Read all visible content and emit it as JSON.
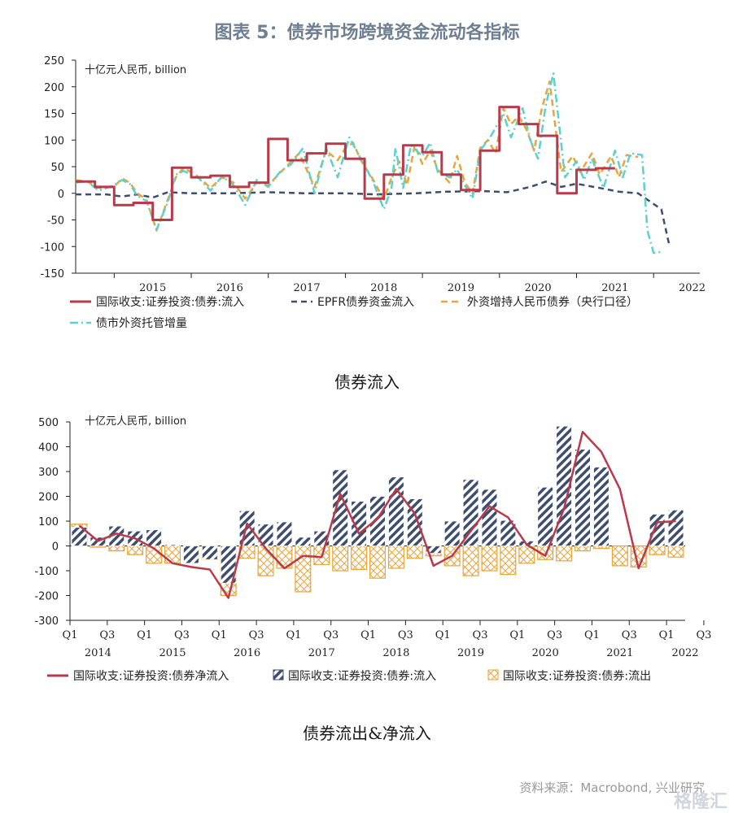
{
  "page": {
    "title": "图表 5：债券市场跨境资金流动各指标",
    "caption1": "债券流入",
    "caption2": "债券流出&净流入",
    "source": "资料来源：Macrobond, 兴业研究",
    "watermark": "格隆汇"
  },
  "chart_data": [
    {
      "type": "line",
      "unit_label": "十亿元人民币, billion",
      "ylim": [
        -150,
        250
      ],
      "yticks": [
        250,
        200,
        150,
        100,
        50,
        0,
        -50,
        -100,
        -150
      ],
      "xlim": [
        2014.5,
        2022.6
      ],
      "x_tick_labels": [
        "2015",
        "2016",
        "2017",
        "2018",
        "2019",
        "2020",
        "2021",
        "2022"
      ],
      "legend": "bottom",
      "colors": {
        "bop": "#b83a4b",
        "epfr": "#3d4e6e",
        "pboc": "#e8a53c",
        "custody": "#5fcfcf"
      },
      "series": [
        {
          "key": "bop",
          "name": "国际收支:证券投资:债券:流入",
          "points": [
            [
              2014.5,
              22
            ],
            [
              2014.75,
              22
            ],
            [
              2014.75,
              12
            ],
            [
              2015.0,
              12
            ],
            [
              2015.0,
              -22
            ],
            [
              2015.25,
              -22
            ],
            [
              2015.25,
              -18
            ],
            [
              2015.5,
              -18
            ],
            [
              2015.5,
              -50
            ],
            [
              2015.75,
              -50
            ],
            [
              2015.75,
              48
            ],
            [
              2016.0,
              48
            ],
            [
              2016.0,
              30
            ],
            [
              2016.25,
              30
            ],
            [
              2016.25,
              33
            ],
            [
              2016.5,
              33
            ],
            [
              2016.5,
              12
            ],
            [
              2016.75,
              12
            ],
            [
              2016.75,
              20
            ],
            [
              2017.0,
              20
            ],
            [
              2017.0,
              102
            ],
            [
              2017.25,
              102
            ],
            [
              2017.25,
              62
            ],
            [
              2017.5,
              62
            ],
            [
              2017.5,
              75
            ],
            [
              2017.75,
              75
            ],
            [
              2017.75,
              93
            ],
            [
              2018.0,
              93
            ],
            [
              2018.0,
              65
            ],
            [
              2018.25,
              65
            ],
            [
              2018.25,
              -10
            ],
            [
              2018.5,
              -10
            ],
            [
              2018.5,
              35
            ],
            [
              2018.75,
              35
            ],
            [
              2018.75,
              90
            ],
            [
              2019.0,
              90
            ],
            [
              2019.0,
              77
            ],
            [
              2019.25,
              77
            ],
            [
              2019.25,
              35
            ],
            [
              2019.5,
              35
            ],
            [
              2019.5,
              6
            ],
            [
              2019.75,
              6
            ],
            [
              2019.75,
              80
            ],
            [
              2020.0,
              80
            ],
            [
              2020.0,
              162
            ],
            [
              2020.25,
              162
            ],
            [
              2020.25,
              130
            ],
            [
              2020.5,
              130
            ],
            [
              2020.5,
              108
            ],
            [
              2020.75,
              108
            ],
            [
              2020.75,
              0
            ],
            [
              2021.0,
              0
            ],
            [
              2021.0,
              44
            ],
            [
              2021.25,
              44
            ],
            [
              2021.25,
              47
            ],
            [
              2021.5,
              47
            ]
          ]
        },
        {
          "key": "epfr",
          "name": "EPFR债券资金流入",
          "points": [
            [
              2014.5,
              -2
            ],
            [
              2014.9,
              -2
            ],
            [
              2015.1,
              -6
            ],
            [
              2015.3,
              -2
            ],
            [
              2015.5,
              -8
            ],
            [
              2015.7,
              2
            ],
            [
              2016.0,
              0
            ],
            [
              2016.5,
              0
            ],
            [
              2017.0,
              2
            ],
            [
              2017.5,
              0
            ],
            [
              2018.0,
              0
            ],
            [
              2018.4,
              -2
            ],
            [
              2018.9,
              0
            ],
            [
              2019.3,
              3
            ],
            [
              2019.8,
              4
            ],
            [
              2020.1,
              2
            ],
            [
              2020.4,
              12
            ],
            [
              2020.6,
              22
            ],
            [
              2020.8,
              12
            ],
            [
              2021.0,
              18
            ],
            [
              2021.3,
              10
            ],
            [
              2021.55,
              3
            ],
            [
              2021.8,
              0
            ],
            [
              2022.0,
              -20
            ],
            [
              2022.1,
              -30
            ],
            [
              2022.2,
              -95
            ]
          ]
        },
        {
          "key": "pboc",
          "name": "外资增持人民币债券（央行口径）",
          "points": [
            [
              2014.5,
              25
            ],
            [
              2014.65,
              22
            ],
            [
              2014.8,
              10
            ],
            [
              2015.0,
              12
            ],
            [
              2015.1,
              28
            ],
            [
              2015.2,
              20
            ],
            [
              2015.3,
              0
            ],
            [
              2015.42,
              -12
            ],
            [
              2015.55,
              -70
            ],
            [
              2015.7,
              -10
            ],
            [
              2015.8,
              30
            ],
            [
              2015.9,
              48
            ],
            [
              2016.1,
              30
            ],
            [
              2016.25,
              10
            ],
            [
              2016.4,
              30
            ],
            [
              2016.55,
              20
            ],
            [
              2016.7,
              -10
            ],
            [
              2016.85,
              20
            ],
            [
              2017.0,
              15
            ],
            [
              2017.15,
              38
            ],
            [
              2017.3,
              60
            ],
            [
              2017.4,
              75
            ],
            [
              2017.6,
              12
            ],
            [
              2017.75,
              80
            ],
            [
              2017.9,
              62
            ],
            [
              2018.0,
              85
            ],
            [
              2018.1,
              95
            ],
            [
              2018.2,
              62
            ],
            [
              2018.35,
              28
            ],
            [
              2018.5,
              -12
            ],
            [
              2018.6,
              30
            ],
            [
              2018.7,
              60
            ],
            [
              2018.8,
              15
            ],
            [
              2018.9,
              90
            ],
            [
              2019.0,
              55
            ],
            [
              2019.1,
              80
            ],
            [
              2019.2,
              45
            ],
            [
              2019.35,
              20
            ],
            [
              2019.45,
              70
            ],
            [
              2019.55,
              20
            ],
            [
              2019.65,
              0
            ],
            [
              2019.75,
              85
            ],
            [
              2019.85,
              100
            ],
            [
              2019.95,
              75
            ],
            [
              2020.05,
              160
            ],
            [
              2020.15,
              130
            ],
            [
              2020.25,
              145
            ],
            [
              2020.35,
              120
            ],
            [
              2020.45,
              80
            ],
            [
              2020.55,
              160
            ],
            [
              2020.65,
              210
            ],
            [
              2020.8,
              40
            ],
            [
              2020.95,
              70
            ],
            [
              2021.05,
              40
            ],
            [
              2021.2,
              75
            ],
            [
              2021.3,
              35
            ],
            [
              2021.45,
              70
            ],
            [
              2021.55,
              30
            ],
            [
              2021.65,
              72
            ],
            [
              2021.8,
              68
            ]
          ]
        },
        {
          "key": "custody",
          "name": "债市外资托管增量",
          "points": [
            [
              2014.5,
              20
            ],
            [
              2014.65,
              22
            ],
            [
              2014.8,
              5
            ],
            [
              2015.0,
              15
            ],
            [
              2015.1,
              25
            ],
            [
              2015.2,
              18
            ],
            [
              2015.3,
              -5
            ],
            [
              2015.42,
              -15
            ],
            [
              2015.55,
              -68
            ],
            [
              2015.7,
              -15
            ],
            [
              2015.8,
              35
            ],
            [
              2015.9,
              42
            ],
            [
              2016.1,
              28
            ],
            [
              2016.25,
              5
            ],
            [
              2016.4,
              32
            ],
            [
              2016.55,
              15
            ],
            [
              2016.7,
              -22
            ],
            [
              2016.85,
              25
            ],
            [
              2017.0,
              12
            ],
            [
              2017.15,
              40
            ],
            [
              2017.3,
              55
            ],
            [
              2017.45,
              85
            ],
            [
              2017.6,
              0
            ],
            [
              2017.75,
              85
            ],
            [
              2017.9,
              30
            ],
            [
              2018.05,
              105
            ],
            [
              2018.2,
              65
            ],
            [
              2018.35,
              25
            ],
            [
              2018.5,
              -30
            ],
            [
              2018.6,
              10
            ],
            [
              2018.65,
              85
            ],
            [
              2018.75,
              10
            ],
            [
              2018.85,
              90
            ],
            [
              2019.0,
              70
            ],
            [
              2019.1,
              95
            ],
            [
              2019.2,
              40
            ],
            [
              2019.35,
              30
            ],
            [
              2019.45,
              45
            ],
            [
              2019.55,
              15
            ],
            [
              2019.65,
              -10
            ],
            [
              2019.75,
              80
            ],
            [
              2019.9,
              110
            ],
            [
              2020.05,
              150
            ],
            [
              2020.15,
              105
            ],
            [
              2020.3,
              160
            ],
            [
              2020.4,
              100
            ],
            [
              2020.5,
              65
            ],
            [
              2020.6,
              165
            ],
            [
              2020.7,
              225
            ],
            [
              2020.85,
              30
            ],
            [
              2021.0,
              60
            ],
            [
              2021.1,
              25
            ],
            [
              2021.2,
              65
            ],
            [
              2021.35,
              10
            ],
            [
              2021.5,
              80
            ],
            [
              2021.6,
              30
            ],
            [
              2021.7,
              75
            ],
            [
              2021.85,
              72
            ],
            [
              2021.92,
              -70
            ],
            [
              2022.0,
              -112
            ],
            [
              2022.1,
              -110
            ]
          ]
        }
      ]
    },
    {
      "type": "bar",
      "unit_label": "十亿元人民币, billion",
      "ylim": [
        -300,
        500
      ],
      "yticks": [
        500,
        400,
        300,
        200,
        100,
        0,
        -100,
        -200,
        -300
      ],
      "quarter_labels": [
        "Q1",
        "Q3",
        "Q1",
        "Q3",
        "Q1",
        "Q3",
        "Q1",
        "Q3",
        "Q1",
        "Q3",
        "Q1",
        "Q3",
        "Q1",
        "Q3",
        "Q1",
        "Q3",
        "Q1",
        "Q3",
        "Q1"
      ],
      "year_labels": [
        "2014",
        "2015",
        "2016",
        "2017",
        "2018",
        "2019",
        "2020",
        "2021",
        "2022"
      ],
      "legend": "bottom",
      "colors": {
        "inflow": "#3d4e6e",
        "outflow": "#e8a53c",
        "net": "#b83a4b"
      },
      "series": [
        {
          "key": "net",
          "name": "国际收支:证券投资:债券净流入",
          "values": [
            82,
            20,
            50,
            30,
            -10,
            -70,
            -85,
            -95,
            -210,
            90,
            -10,
            -90,
            -40,
            -45,
            210,
            50,
            110,
            230,
            130,
            -80,
            -40,
            60,
            160,
            115,
            5,
            -40,
            150,
            460,
            380,
            230,
            -90,
            95,
            100
          ]
        },
        {
          "key": "inflow",
          "name": "国际收支:证券投资:债券:流入",
          "values": [
            75,
            35,
            80,
            60,
            65,
            5,
            -70,
            -55,
            -150,
            142,
            88,
            97,
            35,
            60,
            307,
            180,
            200,
            278,
            190,
            -30,
            100,
            268,
            228,
            103,
            20,
            237,
            483,
            390,
            318,
            0,
            0,
            128,
            145
          ]
        },
        {
          "key": "outflow",
          "name": "国际收支:证券投资:债券:流出",
          "values": [
            88,
            -5,
            -20,
            -35,
            -70,
            -70,
            -60,
            -55,
            -200,
            -50,
            -120,
            -90,
            -185,
            -75,
            -100,
            -95,
            -130,
            -90,
            -50,
            -40,
            -80,
            -120,
            -100,
            -115,
            -70,
            -55,
            -60,
            -20,
            -10,
            -80,
            -85,
            -35,
            -45
          ]
        }
      ]
    }
  ]
}
